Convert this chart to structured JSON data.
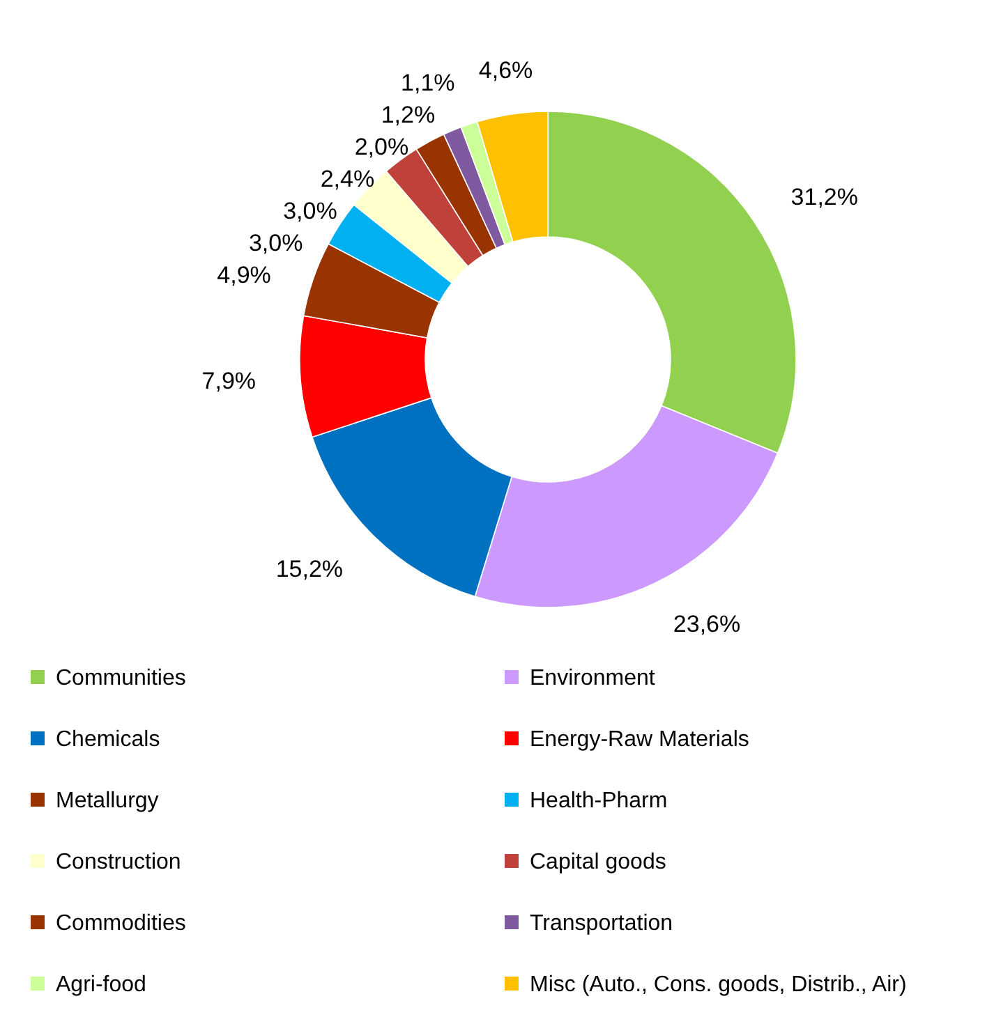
{
  "chart_data": {
    "type": "donut",
    "categories": [
      "Communities",
      "Environment",
      "Chemicals",
      "Energy-Raw Materials",
      "Metallurgy",
      "Health-Pharm",
      "Construction",
      "Capital goods",
      "Commodities",
      "Transportation",
      "Agri-food",
      "Misc (Auto., Cons. goods, Distrib., Air)"
    ],
    "values": [
      31.2,
      23.6,
      15.2,
      7.9,
      4.9,
      3.0,
      3.0,
      2.4,
      2.0,
      1.2,
      1.1,
      4.6
    ],
    "value_labels": [
      "31,2%",
      "23,6%",
      "15,2%",
      "7,9%",
      "4,9%",
      "3,0%",
      "3,0%",
      "2,4%",
      "2,0%",
      "1,2%",
      "1,1%",
      "4,6%"
    ],
    "colors": [
      "#92d050",
      "#cc99ff",
      "#0070c0",
      "#ff0000",
      "#993300",
      "#00b0f0",
      "#ffffcc",
      "#c0403a",
      "#993300",
      "#7f5aa0",
      "#ccff99",
      "#ffc000"
    ],
    "legend": "bottom"
  }
}
